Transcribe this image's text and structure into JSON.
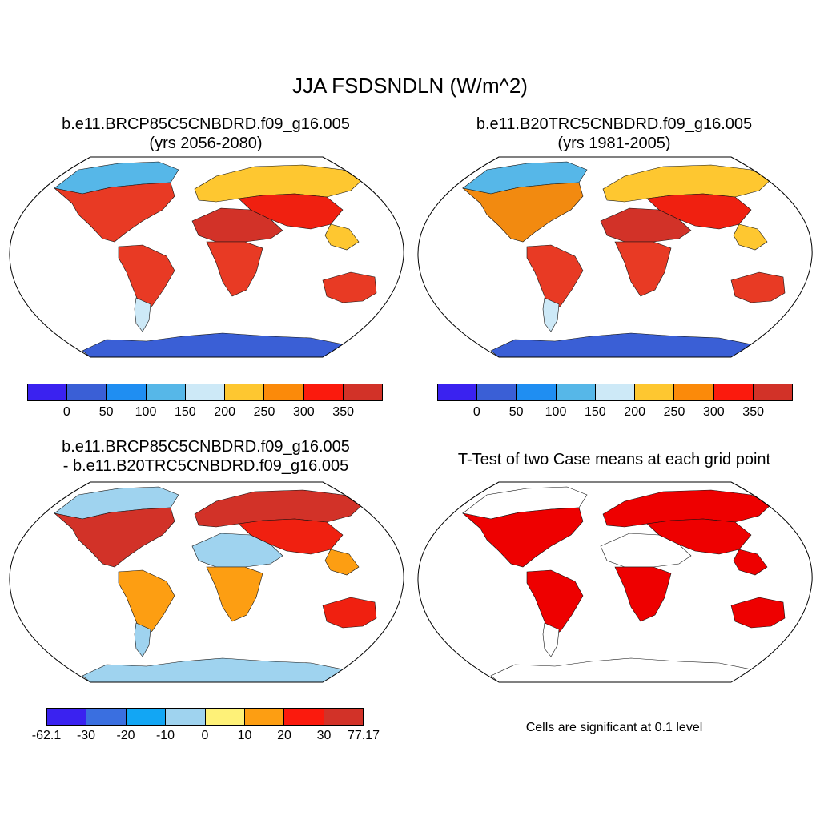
{
  "figure": {
    "title": "JJA FSDSNDLN (W/m^2)"
  },
  "panels": [
    {
      "id": "p1",
      "title_line1": "b.e11.BRCP85C5CNBDRD.f09_g16.005",
      "title_line2": "(yrs 2056-2080)",
      "ocean_color": "#ffffff",
      "antarctica_color": "#3a5fd6",
      "regions": [
        {
          "name": "north-america-arctic",
          "color": "#56b7e8"
        },
        {
          "name": "north-america",
          "color": "#e83a24"
        },
        {
          "name": "south-america",
          "color": "#e83a24"
        },
        {
          "name": "patagonia",
          "color": "#cde9f7"
        },
        {
          "name": "europe-siberia",
          "color": "#fec730"
        },
        {
          "name": "sahara-arabia",
          "color": "#d23228"
        },
        {
          "name": "central-asia",
          "color": "#f02010"
        },
        {
          "name": "africa-south",
          "color": "#e83a24"
        },
        {
          "name": "australia",
          "color": "#e83a24"
        },
        {
          "name": "southeast-asia",
          "color": "#fec730"
        }
      ]
    },
    {
      "id": "p2",
      "title_line1": "b.e11.B20TRC5CNBDRD.f09_g16.005",
      "title_line2": "(yrs 1981-2005)",
      "ocean_color": "#ffffff",
      "antarctica_color": "#3a5fd6",
      "regions": [
        {
          "name": "north-america-arctic",
          "color": "#56b7e8"
        },
        {
          "name": "north-america",
          "color": "#f28a10"
        },
        {
          "name": "south-america",
          "color": "#e83a24"
        },
        {
          "name": "patagonia",
          "color": "#cde9f7"
        },
        {
          "name": "europe-siberia",
          "color": "#fec730"
        },
        {
          "name": "sahara-arabia",
          "color": "#d23228"
        },
        {
          "name": "central-asia",
          "color": "#f02010"
        },
        {
          "name": "africa-south",
          "color": "#e83a24"
        },
        {
          "name": "australia",
          "color": "#e83a24"
        },
        {
          "name": "southeast-asia",
          "color": "#fec730"
        }
      ]
    },
    {
      "id": "p3",
      "title_line1": "b.e11.BRCP85C5CNBDRD.f09_g16.005",
      "title_line2": "- b.e11.B20TRC5CNBDRD.f09_g16.005",
      "ocean_color": "#ffffff",
      "antarctica_color": "#9fd3ef",
      "regions": [
        {
          "name": "north-america-arctic",
          "color": "#9fd3ef"
        },
        {
          "name": "north-america",
          "color": "#d23228"
        },
        {
          "name": "south-america",
          "color": "#fd9e12"
        },
        {
          "name": "patagonia",
          "color": "#9fd3ef"
        },
        {
          "name": "europe-siberia",
          "color": "#d23228"
        },
        {
          "name": "sahara-arabia",
          "color": "#9fd3ef"
        },
        {
          "name": "central-asia",
          "color": "#f02010"
        },
        {
          "name": "africa-south",
          "color": "#fd9e12"
        },
        {
          "name": "australia",
          "color": "#f02010"
        },
        {
          "name": "southeast-asia",
          "color": "#fd9e12"
        }
      ]
    },
    {
      "id": "p4",
      "title_line1": "T-Test of two Case means at each grid point",
      "ocean_color": "#ffffff",
      "antarctica_color": "#ffffff",
      "significant_color": "#ee0000",
      "regions": [
        {
          "name": "north-america-arctic",
          "color": "#ffffff"
        },
        {
          "name": "north-america",
          "color": "#ee0000"
        },
        {
          "name": "south-america",
          "color": "#ee0000"
        },
        {
          "name": "patagonia",
          "color": "#ffffff"
        },
        {
          "name": "europe-siberia",
          "color": "#ee0000"
        },
        {
          "name": "sahara-arabia",
          "color": "#ffffff"
        },
        {
          "name": "central-asia",
          "color": "#ee0000"
        },
        {
          "name": "africa-south",
          "color": "#ee0000"
        },
        {
          "name": "australia",
          "color": "#ee0000"
        },
        {
          "name": "southeast-asia",
          "color": "#ee0000"
        }
      ],
      "note": "Cells are significant at 0.1 level"
    }
  ],
  "colorbars": {
    "absolute": {
      "colors": [
        "#3a22f0",
        "#3a5fd6",
        "#1f8ef2",
        "#56b7e8",
        "#cde9f7",
        "#fec730",
        "#fb8a0a",
        "#fb1a0d",
        "#d23228"
      ],
      "labels": [
        "0",
        "50",
        "100",
        "150",
        "200",
        "250",
        "300",
        "350"
      ]
    },
    "difference": {
      "colors": [
        "#3a22f0",
        "#3a6fe0",
        "#12a6f4",
        "#9fd3ef",
        "#fef178",
        "#fd9e12",
        "#fb1a0d",
        "#d23228"
      ],
      "labels": [
        "-62.1",
        "-30",
        "-20",
        "-10",
        "0",
        "10",
        "20",
        "30",
        "77.17"
      ]
    }
  }
}
